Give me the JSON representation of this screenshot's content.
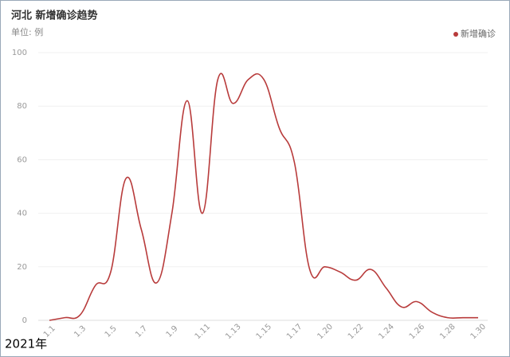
{
  "chart_data": {
    "type": "line",
    "title": "河北 新增确诊趋势",
    "subtitle": "单位: 例",
    "note": "2021年",
    "categories": [
      "1.1",
      null,
      "1.3",
      null,
      "1.5",
      null,
      "1.7",
      null,
      "1.9",
      null,
      "1.11",
      null,
      "1.13",
      null,
      "1.15",
      null,
      "1.17",
      null,
      "1.20",
      null,
      "1.22",
      null,
      "1.24",
      null,
      "1.26",
      null,
      "1.28",
      null,
      "1.30"
    ],
    "series": [
      {
        "name": "新增确诊",
        "color": "#b83b3b",
        "values": [
          0,
          1,
          2,
          13,
          18,
          53,
          34,
          14,
          40,
          82,
          40,
          90,
          81,
          90,
          90,
          72,
          59,
          19,
          20,
          18,
          15,
          19,
          12,
          5,
          7,
          3,
          1,
          1,
          1
        ]
      }
    ],
    "ylim": [
      0,
      100
    ],
    "yticks": [
      0,
      20,
      40,
      60,
      80,
      100
    ],
    "grid": true,
    "smooth": true,
    "legend": "top-right"
  }
}
